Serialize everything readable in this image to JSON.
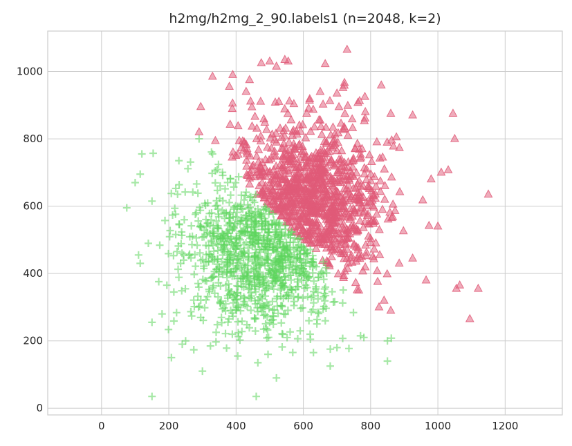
{
  "chart_data": {
    "type": "scatter",
    "title": "h2mg/h2mg_2_90.labels1 (n=2048, k=2)",
    "xlabel": "",
    "ylabel": "",
    "xlim": [
      -160,
      1370
    ],
    "ylim": [
      -20,
      1120
    ],
    "x_ticks": [
      0,
      200,
      400,
      600,
      800,
      1000,
      1200
    ],
    "y_ticks": [
      0,
      200,
      400,
      600,
      800,
      1000
    ],
    "grid": true,
    "legend": "none",
    "n": 2048,
    "k": 2,
    "series": [
      {
        "marker": "triangle",
        "color": "#e05a78",
        "count": 1024,
        "center": [
          610,
          610
        ],
        "spread": [
          110,
          120
        ],
        "constraint": "x + y > 1095",
        "outliers": [
          [
            730,
            1065
          ],
          [
            545,
            1035
          ],
          [
            475,
            1025
          ],
          [
            500,
            1030
          ],
          [
            520,
            1015
          ],
          [
            390,
            990
          ],
          [
            380,
            955
          ],
          [
            295,
            895
          ],
          [
            290,
            820
          ],
          [
            330,
            985
          ],
          [
            440,
            975
          ],
          [
            650,
            940
          ],
          [
            700,
            935
          ],
          [
            1045,
            875
          ],
          [
            1050,
            800
          ],
          [
            1150,
            635
          ],
          [
            1010,
            700
          ],
          [
            1000,
            540
          ],
          [
            1095,
            265
          ],
          [
            1120,
            355
          ],
          [
            1065,
            365
          ],
          [
            1055,
            355
          ],
          [
            965,
            380
          ],
          [
            925,
            445
          ],
          [
            885,
            430
          ],
          [
            860,
            290
          ],
          [
            840,
            320
          ],
          [
            825,
            300
          ],
          [
            765,
            350
          ],
          [
            555,
            1030
          ],
          [
            610,
            875
          ],
          [
            860,
            875
          ],
          [
            925,
            870
          ],
          [
            980,
            680
          ]
        ]
      },
      {
        "marker": "plus",
        "color": "#5cd65c",
        "count": 1024,
        "center": [
          480,
          470
        ],
        "spread": [
          120,
          115
        ],
        "constraint": "x + y < 1095",
        "outliers": [
          [
            150,
            35
          ],
          [
            460,
            35
          ],
          [
            520,
            90
          ],
          [
            300,
            110
          ],
          [
            75,
            595
          ],
          [
            100,
            670
          ],
          [
            120,
            755
          ],
          [
            115,
            695
          ],
          [
            230,
            735
          ],
          [
            150,
            615
          ],
          [
            115,
            430
          ],
          [
            110,
            455
          ],
          [
            150,
            255
          ],
          [
            250,
            200
          ],
          [
            405,
            155
          ],
          [
            495,
            160
          ],
          [
            680,
            125
          ],
          [
            850,
            140
          ],
          [
            850,
            200
          ],
          [
            780,
            210
          ],
          [
            770,
            215
          ],
          [
            700,
            180
          ],
          [
            630,
            165
          ],
          [
            240,
            190
          ],
          [
            290,
            800
          ],
          [
            330,
            755
          ],
          [
            215,
            345
          ],
          [
            180,
            280
          ]
        ]
      }
    ]
  }
}
